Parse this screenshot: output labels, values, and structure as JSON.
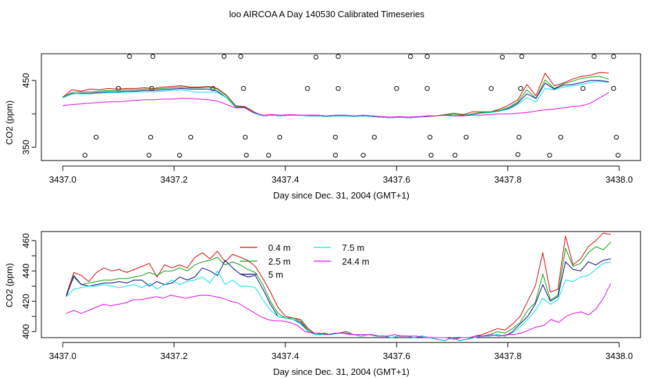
{
  "title": "loo AIRCOA A  Day 140530  Calibrated Timeseries",
  "colors": {
    "s04": "#d40000",
    "s25": "#00a000",
    "s5": "#00008b",
    "s75": "#00e0e0",
    "s244": "#e000e0",
    "axis": "#000000"
  },
  "chart_data": [
    {
      "type": "scatter",
      "panel": "top",
      "xlabel": "Day since Dec. 31, 2004 (GMT+1)",
      "ylabel": "CO2 (ppm)",
      "xlim": [
        3437.0,
        3438.0
      ],
      "ylim": [
        330,
        490
      ],
      "x_ticks": [
        "3437.0",
        "3437.2",
        "3437.4",
        "3437.6",
        "3437.8",
        "3438.0"
      ],
      "y_ticks": [
        "350",
        "450"
      ],
      "grid": false,
      "marker": "open-circle",
      "flag_points": [
        {
          "x": 3437.04,
          "y": 338
        },
        {
          "x": 3437.06,
          "y": 365
        },
        {
          "x": 3437.1,
          "y": 438
        },
        {
          "x": 3437.12,
          "y": 486
        },
        {
          "x": 3437.155,
          "y": 338
        },
        {
          "x": 3437.158,
          "y": 365
        },
        {
          "x": 3437.16,
          "y": 438
        },
        {
          "x": 3437.162,
          "y": 486
        },
        {
          "x": 3437.21,
          "y": 338
        },
        {
          "x": 3437.23,
          "y": 365
        },
        {
          "x": 3437.27,
          "y": 438
        },
        {
          "x": 3437.29,
          "y": 486
        },
        {
          "x": 3437.32,
          "y": 486
        },
        {
          "x": 3437.325,
          "y": 438
        },
        {
          "x": 3437.328,
          "y": 365
        },
        {
          "x": 3437.33,
          "y": 338
        },
        {
          "x": 3437.37,
          "y": 338
        },
        {
          "x": 3437.39,
          "y": 365
        },
        {
          "x": 3437.44,
          "y": 438
        },
        {
          "x": 3437.455,
          "y": 485
        },
        {
          "x": 3437.49,
          "y": 338
        },
        {
          "x": 3437.49,
          "y": 365
        },
        {
          "x": 3437.495,
          "y": 438
        },
        {
          "x": 3437.495,
          "y": 486
        },
        {
          "x": 3437.54,
          "y": 338
        },
        {
          "x": 3437.56,
          "y": 365
        },
        {
          "x": 3437.6,
          "y": 438
        },
        {
          "x": 3437.625,
          "y": 486
        },
        {
          "x": 3437.655,
          "y": 486
        },
        {
          "x": 3437.655,
          "y": 438
        },
        {
          "x": 3437.66,
          "y": 365
        },
        {
          "x": 3437.662,
          "y": 338
        },
        {
          "x": 3437.705,
          "y": 338
        },
        {
          "x": 3437.725,
          "y": 365
        },
        {
          "x": 3437.77,
          "y": 438
        },
        {
          "x": 3437.79,
          "y": 485
        },
        {
          "x": 3437.825,
          "y": 486
        },
        {
          "x": 3437.823,
          "y": 438
        },
        {
          "x": 3437.82,
          "y": 365
        },
        {
          "x": 3437.818,
          "y": 339
        },
        {
          "x": 3437.875,
          "y": 338
        },
        {
          "x": 3437.895,
          "y": 365
        },
        {
          "x": 3437.935,
          "y": 438
        },
        {
          "x": 3437.955,
          "y": 486
        },
        {
          "x": 3437.99,
          "y": 486
        },
        {
          "x": 3437.99,
          "y": 438
        },
        {
          "x": 3437.995,
          "y": 365
        },
        {
          "x": 3437.998,
          "y": 338
        }
      ],
      "series": [
        {
          "key": "s04",
          "y": [
            425,
            436,
            434,
            437,
            436,
            438,
            437,
            438,
            438,
            439,
            438,
            440,
            441,
            442,
            440,
            440,
            441,
            438,
            428,
            412,
            411,
            403,
            397,
            398,
            397,
            398,
            398,
            397,
            397,
            396,
            397,
            397,
            396,
            397,
            396,
            395,
            394,
            395,
            394,
            395,
            397,
            397,
            399,
            401,
            399,
            403,
            403,
            403,
            407,
            413,
            421,
            444,
            427,
            461,
            442,
            446,
            452,
            456,
            458,
            462,
            461
          ]
        },
        {
          "key": "s25",
          "y": [
            425,
            432,
            433,
            433,
            434,
            435,
            435,
            436,
            436,
            437,
            437,
            438,
            439,
            440,
            439,
            439,
            440,
            437,
            427,
            411,
            410,
            402,
            397,
            398,
            397,
            398,
            398,
            397,
            397,
            396,
            397,
            397,
            396,
            397,
            396,
            395,
            394,
            395,
            394,
            395,
            397,
            397,
            399,
            399,
            398,
            400,
            402,
            403,
            405,
            410,
            418,
            436,
            423,
            451,
            438,
            445,
            449,
            453,
            455,
            456,
            452
          ]
        },
        {
          "key": "s5",
          "y": [
            424,
            430,
            431,
            431,
            432,
            433,
            433,
            434,
            434,
            435,
            435,
            436,
            437,
            438,
            437,
            437,
            437,
            434,
            424,
            410,
            409,
            401,
            397,
            398,
            397,
            398,
            398,
            397,
            397,
            396,
            397,
            397,
            396,
            397,
            396,
            395,
            394,
            395,
            394,
            395,
            396,
            397,
            398,
            397,
            397,
            399,
            401,
            402,
            404,
            408,
            416,
            430,
            423,
            446,
            437,
            443,
            444,
            447,
            450,
            450,
            448
          ]
        },
        {
          "key": "s75",
          "y": [
            424,
            431,
            430,
            430,
            431,
            432,
            432,
            432,
            433,
            433,
            433,
            434,
            435,
            436,
            434,
            432,
            433,
            432,
            424,
            410,
            409,
            401,
            397,
            398,
            397,
            398,
            398,
            397,
            397,
            396,
            397,
            397,
            396,
            397,
            396,
            395,
            394,
            395,
            394,
            395,
            396,
            397,
            398,
            397,
            397,
            399,
            401,
            402,
            404,
            407,
            414,
            424,
            418,
            438,
            436,
            440,
            442,
            444,
            447,
            449,
            447
          ]
        },
        {
          "key": "s244",
          "y": [
            412,
            414,
            415,
            416,
            417,
            418,
            418,
            419,
            420,
            421,
            421,
            422,
            422,
            423,
            423,
            422,
            421,
            419,
            414,
            409,
            409,
            402,
            398,
            399,
            398,
            399,
            398,
            398,
            398,
            397,
            398,
            398,
            397,
            398,
            397,
            396,
            395,
            396,
            395,
            396,
            396,
            397,
            398,
            397,
            397,
            398,
            398,
            399,
            400,
            400,
            401,
            402,
            404,
            406,
            407,
            409,
            411,
            412,
            416,
            424,
            432
          ]
        }
      ]
    },
    {
      "type": "line",
      "panel": "bottom",
      "xlabel": "Day since Dec. 31, 2004 (GMT+1)",
      "ylabel": "CO2 (ppm)",
      "xlim": [
        3437.0,
        3438.0
      ],
      "ylim": [
        396,
        466
      ],
      "x_ticks": [
        "3437.0",
        "3437.2",
        "3437.4",
        "3437.6",
        "3437.8",
        "3438.0"
      ],
      "y_ticks": [
        "400",
        "420",
        "440",
        "460"
      ],
      "grid": false,
      "legend_position": "top-center",
      "legend": [
        {
          "key": "s04",
          "label": "0.4 m"
        },
        {
          "key": "s25",
          "label": "2.5 m"
        },
        {
          "key": "s5",
          "label": "5 m"
        },
        {
          "key": "s75",
          "label": "7.5 m"
        },
        {
          "key": "s244",
          "label": "24.4 m"
        }
      ],
      "series": [
        {
          "key": "s04",
          "y": [
            424,
            439,
            437,
            433,
            439,
            442,
            440,
            441,
            439,
            441,
            443,
            445,
            436,
            444,
            442,
            444,
            442,
            449,
            452,
            448,
            453,
            446,
            451,
            449,
            447,
            443,
            435,
            426,
            416,
            410,
            409,
            408,
            402,
            398,
            399,
            398,
            399,
            400,
            398,
            397,
            398,
            397,
            397,
            396,
            397,
            397,
            396,
            397,
            396,
            395,
            394,
            396,
            394,
            395,
            397,
            398,
            400,
            402,
            401,
            405,
            410,
            420,
            430,
            452,
            426,
            428,
            463,
            444,
            448,
            456,
            460,
            465,
            464
          ]
        },
        {
          "key": "s25",
          "y": [
            424,
            436,
            431,
            432,
            433,
            434,
            434,
            435,
            435,
            436,
            437,
            439,
            437,
            440,
            440,
            442,
            440,
            444,
            446,
            447,
            449,
            444,
            446,
            444,
            441,
            439,
            431,
            420,
            412,
            409,
            409,
            407,
            401,
            398,
            399,
            398,
            399,
            399,
            398,
            397,
            398,
            397,
            397,
            396,
            397,
            397,
            396,
            397,
            396,
            395,
            394,
            396,
            394,
            395,
            397,
            397,
            398,
            400,
            399,
            402,
            406,
            414,
            419,
            438,
            421,
            424,
            455,
            443,
            445,
            452,
            456,
            454,
            459
          ]
        },
        {
          "key": "s5",
          "y": [
            423,
            437,
            431,
            430,
            431,
            432,
            432,
            433,
            432,
            434,
            434,
            430,
            433,
            431,
            432,
            436,
            434,
            436,
            442,
            440,
            437,
            447,
            442,
            438,
            436,
            437,
            428,
            418,
            410,
            409,
            408,
            406,
            400,
            398,
            398,
            398,
            399,
            399,
            398,
            397,
            398,
            397,
            397,
            396,
            397,
            397,
            396,
            397,
            396,
            395,
            394,
            396,
            394,
            395,
            396,
            397,
            397,
            398,
            397,
            400,
            405,
            410,
            418,
            431,
            420,
            423,
            446,
            441,
            440,
            446,
            444,
            447,
            448
          ]
        },
        {
          "key": "s75",
          "y": [
            423,
            428,
            429,
            430,
            430,
            431,
            430,
            429,
            430,
            431,
            429,
            432,
            428,
            431,
            434,
            431,
            433,
            434,
            436,
            432,
            440,
            431,
            434,
            430,
            430,
            429,
            421,
            414,
            410,
            409,
            408,
            405,
            400,
            398,
            398,
            398,
            399,
            399,
            398,
            397,
            398,
            397,
            397,
            396,
            397,
            397,
            396,
            397,
            396,
            395,
            394,
            396,
            394,
            395,
            396,
            397,
            397,
            398,
            397,
            399,
            403,
            408,
            414,
            422,
            418,
            421,
            434,
            433,
            436,
            437,
            441,
            445,
            446
          ]
        },
        {
          "key": "s244",
          "y": [
            412,
            414,
            412,
            414,
            416,
            418,
            417,
            418,
            419,
            421,
            421,
            422,
            423,
            422,
            424,
            423,
            422,
            423,
            424,
            424,
            423,
            422,
            420,
            419,
            416,
            413,
            410,
            408,
            407,
            407,
            406,
            404,
            400,
            399,
            399,
            398,
            399,
            399,
            398,
            398,
            398,
            398,
            397,
            397,
            398,
            397,
            397,
            397,
            396,
            396,
            396,
            396,
            395,
            396,
            396,
            397,
            397,
            398,
            397,
            398,
            398,
            399,
            401,
            403,
            404,
            408,
            406,
            410,
            412,
            413,
            411,
            415,
            422,
            432
          ]
        }
      ]
    }
  ]
}
